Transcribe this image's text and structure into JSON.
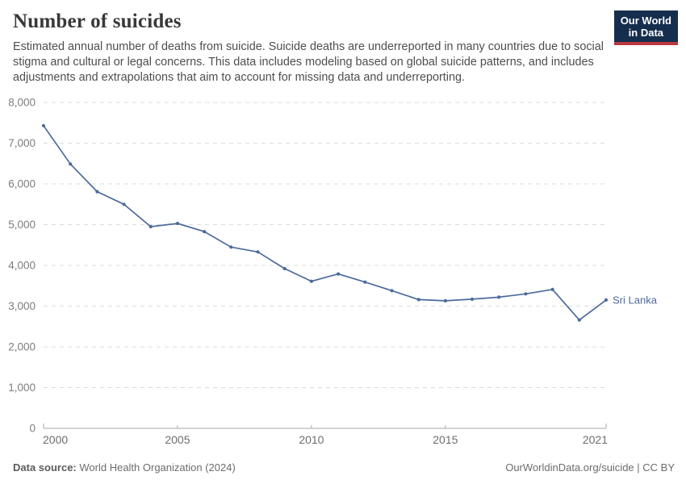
{
  "header": {
    "title": "Number of suicides",
    "subtitle": "Estimated annual number of deaths from suicide. Suicide deaths are underreported in many countries due to social stigma and cultural or legal concerns. This data includes modeling based on global suicide patterns, and includes adjustments and extrapolations that aim to account for missing data and underreporting."
  },
  "logo": {
    "line1": "Our World",
    "line2": "in Data",
    "bg_color": "#152e4d",
    "underline_color": "#b93741"
  },
  "chart_data": {
    "type": "line",
    "title": "Number of suicides",
    "x": [
      2000,
      2001,
      2002,
      2003,
      2004,
      2005,
      2006,
      2007,
      2008,
      2009,
      2010,
      2011,
      2012,
      2013,
      2014,
      2015,
      2016,
      2017,
      2018,
      2019,
      2020,
      2021
    ],
    "series": [
      {
        "name": "Sri Lanka",
        "color": "#4c6a9c",
        "values": [
          7430,
          6490,
          5810,
          5500,
          4950,
          5030,
          4830,
          4450,
          4330,
          3920,
          3610,
          3790,
          3590,
          3380,
          3160,
          3130,
          3170,
          3220,
          3300,
          3410,
          2660,
          3150
        ]
      }
    ],
    "xlabel": "",
    "ylabel": "",
    "ylim": [
      0,
      8000
    ],
    "yticks": [
      0,
      1000,
      2000,
      3000,
      4000,
      5000,
      6000,
      7000,
      8000
    ],
    "ytick_labels": [
      "0",
      "1,000",
      "2,000",
      "3,000",
      "4,000",
      "5,000",
      "6,000",
      "7,000",
      "8,000"
    ],
    "xticks": [
      2000,
      2005,
      2010,
      2015,
      2021
    ],
    "grid": "horizontal dashed",
    "legend_position": "end-of-line label",
    "end_label": "Sri Lanka",
    "colors": {
      "gridline": "#dcdcdc",
      "baseline": "#a9a9a9",
      "tick_label": "#7d7d7d",
      "x_tick_label": "#6e6e6e"
    }
  },
  "footer": {
    "source_label": "Data source:",
    "source_value": "World Health Organization (2024)",
    "rights": "OurWorldinData.org/suicide | CC BY"
  }
}
